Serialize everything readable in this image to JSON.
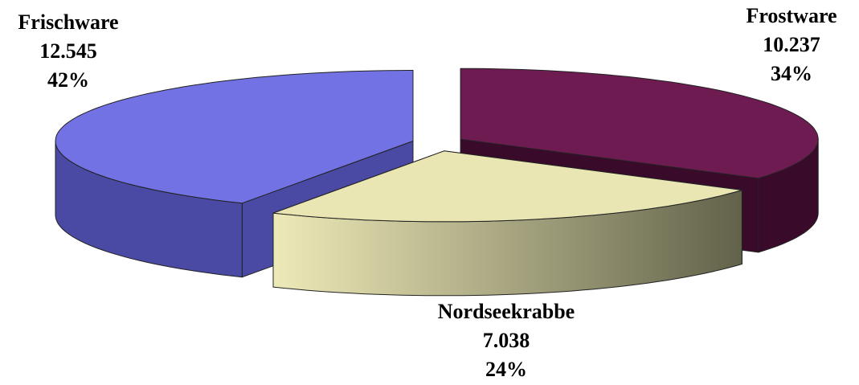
{
  "chart_data": {
    "type": "pie",
    "categories": [
      "Frostware",
      "Nordseekrabbe",
      "Frischware"
    ],
    "values": [
      10237,
      7038,
      12545
    ],
    "value_labels": [
      "10.237",
      "7.038",
      "12.545"
    ],
    "percents": [
      34,
      24,
      42
    ],
    "percent_labels": [
      "34%",
      "24%",
      "42%"
    ],
    "colors": [
      "#6e1b52",
      "#e9e6b4",
      "#7272e4"
    ],
    "side_colors": [
      "#3a0a2a",
      "#6c6c52",
      "#4a4aa4"
    ]
  }
}
